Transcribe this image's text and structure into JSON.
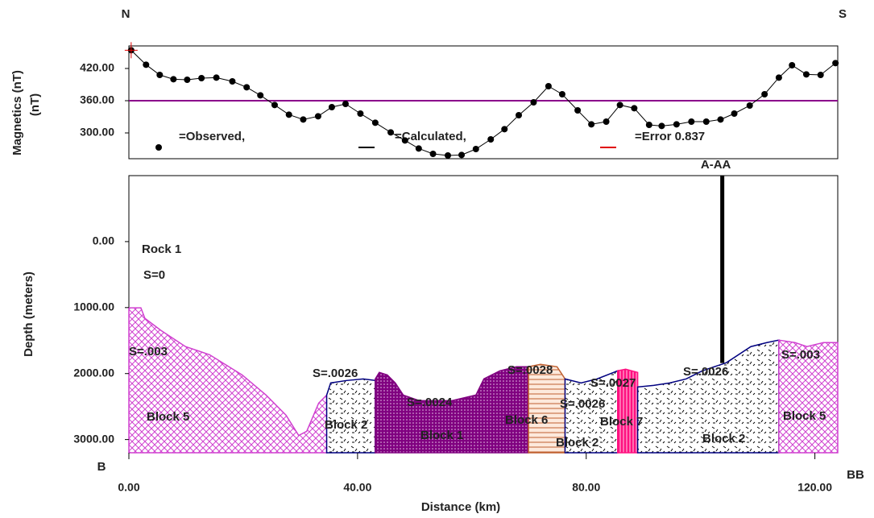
{
  "chart_data": [
    {
      "type": "line",
      "ylabel": "Magnetics (nT)",
      "ylabel2": "(nT)",
      "left_label": "N",
      "right_label": "S",
      "xlim": [
        0,
        124
      ],
      "ylim": [
        252,
        462
      ],
      "yticks": [
        {
          "value": 300,
          "label": "300.00"
        },
        {
          "value": 360,
          "label": "360.00"
        },
        {
          "value": 420,
          "label": "420.00"
        }
      ],
      "reference_line": {
        "value": 360,
        "color": "#8b008b"
      },
      "error_label": "=Error 0.837",
      "error_color": "#e00000",
      "series": [
        {
          "name": "=Observed,",
          "color": "#000000",
          "marker": "circle",
          "x": [
            0.4,
            3.0,
            5.4,
            7.8,
            10.2,
            12.7,
            15.3,
            18.1,
            20.6,
            23.0,
            25.5,
            28.0,
            30.5,
            33.1,
            35.5,
            37.9,
            40.5,
            43.1,
            45.8,
            48.3,
            50.7,
            53.2,
            55.8,
            58.2,
            60.7,
            63.3,
            65.7,
            68.2,
            70.8,
            73.4,
            75.8,
            78.5,
            80.9,
            83.5,
            85.9,
            88.4,
            91.0,
            93.2,
            95.8,
            98.4,
            101.0,
            103.5,
            105.9,
            108.6,
            111.2,
            113.7,
            116.0,
            118.5,
            121.0,
            123.6
          ],
          "values": [
            454,
            427,
            408,
            400,
            399,
            402,
            403,
            396,
            385,
            370,
            352,
            334,
            325,
            331,
            348,
            354,
            336,
            319,
            301,
            286,
            271,
            261,
            258,
            259,
            270,
            288,
            307,
            333,
            357,
            387,
            372,
            342,
            316,
            321,
            352,
            346,
            315,
            313,
            316,
            321,
            321,
            325,
            336,
            351,
            372,
            403,
            426,
            409,
            408,
            430
          ]
        },
        {
          "name": "=Calculated,",
          "color": "#000000",
          "marker": "none",
          "x": [
            0.4,
            3.0,
            5.4,
            7.8,
            10.2,
            12.7,
            15.3,
            18.1,
            20.6,
            23.0,
            25.5,
            28.0,
            30.5,
            33.1,
            35.5,
            37.9,
            40.5,
            43.1,
            45.8,
            48.3,
            50.7,
            53.2,
            55.8,
            58.2,
            60.7,
            63.3,
            65.7,
            68.2,
            70.8,
            73.4,
            75.8,
            78.5,
            80.9,
            83.5,
            85.9,
            88.4,
            91.0,
            93.2,
            95.8,
            98.4,
            101.0,
            103.5,
            105.9,
            108.6,
            111.2,
            113.7,
            116.0,
            118.5,
            121.0,
            123.6
          ],
          "values": [
            454,
            427,
            408,
            400,
            399,
            402,
            403,
            396,
            385,
            370,
            352,
            334,
            325,
            331,
            348,
            354,
            336,
            319,
            301,
            286,
            271,
            261,
            258,
            259,
            270,
            288,
            307,
            333,
            357,
            387,
            372,
            342,
            316,
            321,
            352,
            346,
            315,
            313,
            316,
            321,
            321,
            325,
            336,
            351,
            372,
            403,
            426,
            409,
            408,
            430
          ]
        }
      ]
    },
    {
      "type": "section",
      "xlabel": "Distance (km)",
      "ylabel": "Depth (meters)",
      "start_label": "B",
      "end_label": "BB",
      "xlim": [
        0,
        124
      ],
      "ylim": [
        -1000,
        3200
      ],
      "inverted": true,
      "xticks": [
        {
          "value": 0,
          "label": "0.00"
        },
        {
          "value": 40,
          "label": "40.00"
        },
        {
          "value": 80,
          "label": "80.00"
        },
        {
          "value": 120,
          "label": "120.00"
        }
      ],
      "yticks": [
        {
          "value": 0,
          "label": "0.00"
        },
        {
          "value": 1000,
          "label": "1000.00"
        },
        {
          "value": 2000,
          "label": "2000.00"
        },
        {
          "value": 3000,
          "label": "3000.00"
        }
      ],
      "background": {
        "name": "Rock 1",
        "label": "S=0"
      },
      "profile": {
        "label": "A-AA",
        "x": 103.8,
        "depth": [
          -1000,
          1840
        ]
      },
      "blocks": [
        {
          "name": "Block 5",
          "label": "S=.003",
          "color": "#d040d0",
          "fill": "crosshatch",
          "x": [
            0,
            2.1,
            2.8,
            5.6,
            9.9,
            14.1,
            19.8,
            24.0,
            27.5,
            29.7,
            31.1,
            33.2,
            34.6,
            34.6,
            0
          ],
          "depth": [
            1004,
            1004,
            1163,
            1346,
            1591,
            1714,
            2020,
            2326,
            2632,
            2938,
            2876,
            2448,
            2326,
            3200,
            3200
          ]
        },
        {
          "name": "Block 2",
          "label": "S=.0026",
          "color": "#000080",
          "fill": "dashes",
          "x": [
            34.6,
            35.3,
            38.1,
            41.0,
            43.1,
            43.1,
            34.6
          ],
          "depth": [
            2326,
            2142,
            2105,
            2081,
            2105,
            3200,
            3200
          ]
        },
        {
          "name": "Block 1",
          "label": "S=.0024",
          "color": "#800080",
          "fill": "dots",
          "x": [
            43.1,
            43.8,
            45.2,
            46.6,
            48.0,
            50.8,
            56.5,
            60.7,
            62.1,
            64.9,
            67.8,
            69.9,
            69.9,
            43.1
          ],
          "depth": [
            2081,
            1983,
            2020,
            2142,
            2326,
            2411,
            2411,
            2326,
            2081,
            1958,
            1897,
            1897,
            3200,
            3200
          ]
        },
        {
          "name": "Block 6",
          "label": "S=.0028",
          "color": "#c06030",
          "fill": "hlines",
          "x": [
            69.9,
            72.0,
            74.9,
            76.3,
            76.3,
            69.9
          ],
          "depth": [
            1897,
            1860,
            1897,
            2081,
            3200,
            3200
          ]
        },
        {
          "name": "Block 2",
          "label": "S=.0026",
          "color": "#000080",
          "fill": "dashes",
          "x": [
            76.3,
            79.1,
            81.9,
            85.5,
            85.5,
            76.3
          ],
          "depth": [
            2081,
            2142,
            2081,
            1958,
            3200,
            3200
          ]
        },
        {
          "name": "Block 7",
          "label": "S=.0027",
          "color": "#ff1080",
          "fill": "vlines",
          "x": [
            85.5,
            86.9,
            89.0,
            89.0,
            85.5
          ],
          "depth": [
            1958,
            1934,
            1983,
            3200,
            3200
          ]
        },
        {
          "name": "Block 2",
          "label": "S=.0026",
          "color": "#000080",
          "fill": "dashes",
          "x": [
            89.0,
            91.8,
            94.6,
            97.5,
            100.3,
            104.5,
            108.8,
            111.6,
            113.7,
            113.7,
            89.0
          ],
          "depth": [
            2203,
            2179,
            2142,
            2081,
            1958,
            1836,
            1591,
            1530,
            1493,
            3200,
            3200
          ]
        },
        {
          "name": "Block 5",
          "label": "S=.003",
          "color": "#d040d0",
          "fill": "crosshatch",
          "x": [
            113.7,
            116.5,
            118.6,
            121.5,
            124,
            124,
            113.7
          ],
          "depth": [
            1493,
            1530,
            1591,
            1530,
            1530,
            3200,
            3200
          ]
        }
      ]
    }
  ]
}
